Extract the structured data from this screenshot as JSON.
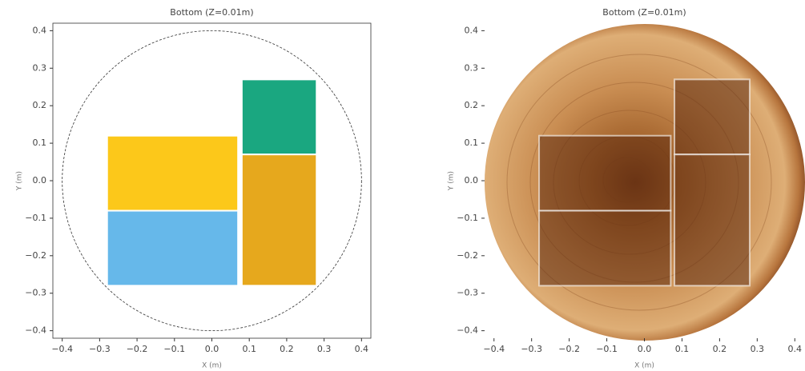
{
  "chart_data": [
    {
      "type": "rect",
      "title": "Bottom (Z=0.01m)",
      "xlabel": "X (m)",
      "ylabel": "Y (m)",
      "xlim": [
        -0.425,
        0.425
      ],
      "ylim": [
        -0.42,
        0.42
      ],
      "xticks": [
        {
          "value": -0.4,
          "label": "−0.4"
        },
        {
          "value": -0.3,
          "label": "−0.3"
        },
        {
          "value": -0.2,
          "label": "−0.2"
        },
        {
          "value": -0.1,
          "label": "−0.1"
        },
        {
          "value": 0,
          "label": "0.0"
        },
        {
          "value": 0.1,
          "label": "0.1"
        },
        {
          "value": 0.2,
          "label": "0.2"
        },
        {
          "value": 0.3,
          "label": "0.3"
        },
        {
          "value": 0.4,
          "label": "0.4"
        }
      ],
      "yticks": [
        {
          "value": -0.4,
          "label": "−0.4"
        },
        {
          "value": -0.3,
          "label": "−0.3"
        },
        {
          "value": -0.2,
          "label": "−0.2"
        },
        {
          "value": -0.1,
          "label": "−0.1"
        },
        {
          "value": 0,
          "label": "0.0"
        },
        {
          "value": 0.1,
          "label": "0.1"
        },
        {
          "value": 0.2,
          "label": "0.2"
        },
        {
          "value": 0.3,
          "label": "0.3"
        },
        {
          "value": 0.4,
          "label": "0.4"
        }
      ],
      "circle": {
        "center": [
          0,
          0
        ],
        "radius": 0.4
      },
      "rectangles": [
        {
          "x": [
            -0.28,
            0.07
          ],
          "y": [
            -0.08,
            0.12
          ],
          "color": "#fcc81a"
        },
        {
          "x": [
            -0.28,
            0.07
          ],
          "y": [
            -0.28,
            -0.08
          ],
          "color": "#66b8ea"
        },
        {
          "x": [
            0.08,
            0.28
          ],
          "y": [
            0.07,
            0.27
          ],
          "color": "#1aa780"
        },
        {
          "x": [
            0.08,
            0.28
          ],
          "y": [
            -0.28,
            0.07
          ],
          "color": "#e6a81d"
        }
      ]
    },
    {
      "type": "rect",
      "title": "Bottom (Z=0.01m)",
      "xlabel": "X (m)",
      "ylabel": "Y (m)",
      "xlim": [
        -0.425,
        0.425
      ],
      "ylim": [
        -0.42,
        0.42
      ],
      "xticks": [
        {
          "value": -0.4,
          "label": "−0.4"
        },
        {
          "value": -0.3,
          "label": "−0.3"
        },
        {
          "value": -0.2,
          "label": "−0.2"
        },
        {
          "value": -0.1,
          "label": "−0.1"
        },
        {
          "value": 0,
          "label": "0.0"
        },
        {
          "value": 0.1,
          "label": "0.1"
        },
        {
          "value": 0.2,
          "label": "0.2"
        },
        {
          "value": 0.3,
          "label": "0.3"
        },
        {
          "value": 0.4,
          "label": "0.4"
        }
      ],
      "yticks": [
        {
          "value": -0.4,
          "label": "−0.4"
        },
        {
          "value": -0.3,
          "label": "−0.3"
        },
        {
          "value": -0.2,
          "label": "−0.2"
        },
        {
          "value": -0.1,
          "label": "−0.1"
        },
        {
          "value": 0,
          "label": "0.0"
        },
        {
          "value": 0.1,
          "label": "0.1"
        },
        {
          "value": 0.2,
          "label": "0.2"
        },
        {
          "value": 0.3,
          "label": "0.3"
        },
        {
          "value": 0.4,
          "label": "0.4"
        }
      ],
      "rectangles": [
        {
          "x": [
            -0.28,
            0.07
          ],
          "y": [
            -0.08,
            0.12
          ],
          "color": "#5e2c10"
        },
        {
          "x": [
            -0.28,
            0.07
          ],
          "y": [
            -0.28,
            -0.08
          ],
          "color": "#5e2c10"
        },
        {
          "x": [
            0.08,
            0.28
          ],
          "y": [
            0.07,
            0.27
          ],
          "color": "#5e2c10"
        },
        {
          "x": [
            0.08,
            0.28
          ],
          "y": [
            -0.28,
            0.07
          ],
          "color": "#5e2c10"
        }
      ],
      "opacity": 0.55
    }
  ]
}
